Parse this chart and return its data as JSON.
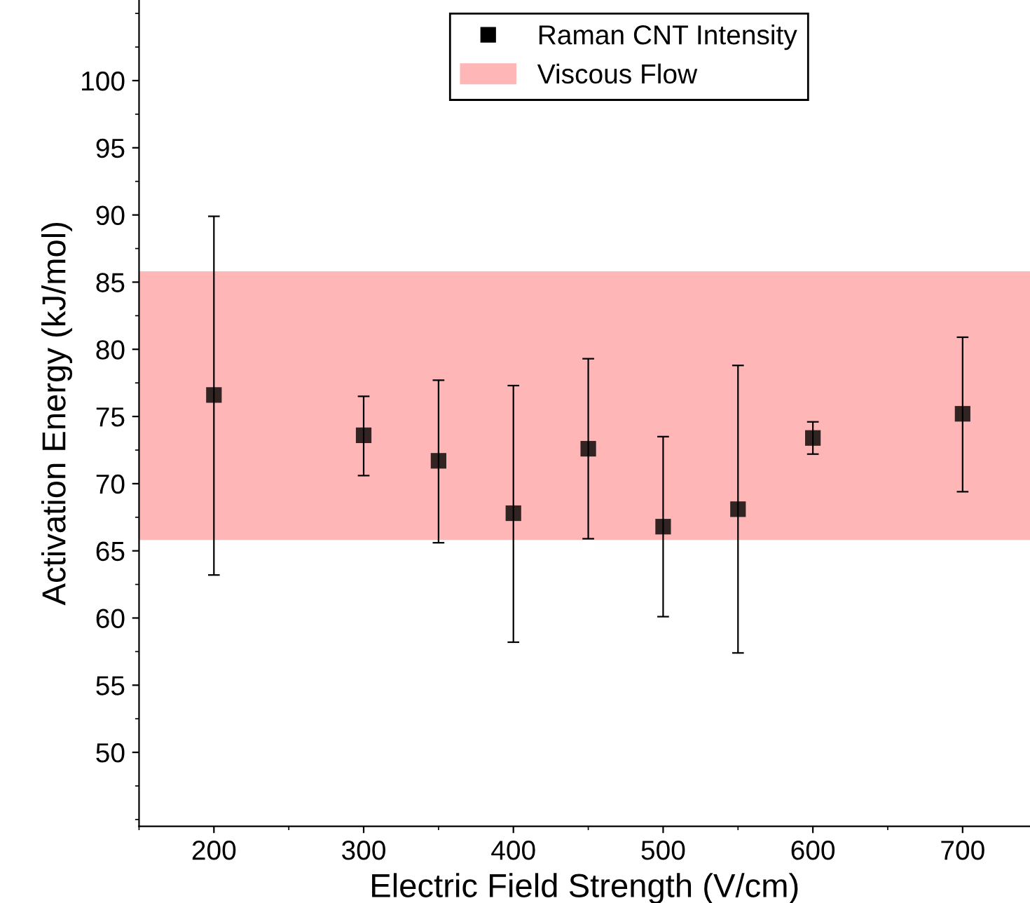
{
  "chart_data": {
    "type": "scatter",
    "xlabel": "Electric Field Strength (V/cm)",
    "ylabel": "Activation Energy (kJ/mol)",
    "x": [
      200,
      300,
      350,
      400,
      450,
      500,
      550,
      600,
      700
    ],
    "series": [
      {
        "name": "Raman CNT Intensity",
        "color": "#000000",
        "values": [
          76.6,
          73.6,
          71.7,
          67.8,
          72.6,
          66.8,
          68.1,
          73.4,
          75.2
        ],
        "errors": [
          [
            63.2,
            89.9
          ],
          [
            70.6,
            76.5
          ],
          [
            65.6,
            77.7
          ],
          [
            58.2,
            77.3
          ],
          [
            65.9,
            79.3
          ],
          [
            60.1,
            73.5
          ],
          [
            57.4,
            78.8
          ],
          [
            72.2,
            74.6
          ],
          [
            69.4,
            80.9
          ]
        ]
      }
    ],
    "bands": [
      {
        "axis": "y",
        "from": 65.8,
        "to": 85.8,
        "label": "Viscous Flow",
        "color": "#ffb6b6"
      }
    ],
    "xlim": [
      150,
      745
    ],
    "ylim": [
      44.5,
      106
    ],
    "xticks": [
      200,
      300,
      400,
      500,
      600,
      700
    ],
    "yticks": [
      50,
      55,
      60,
      65,
      70,
      75,
      80,
      85,
      90,
      95,
      100
    ],
    "marker": "square",
    "grid": false,
    "legend": "top"
  }
}
